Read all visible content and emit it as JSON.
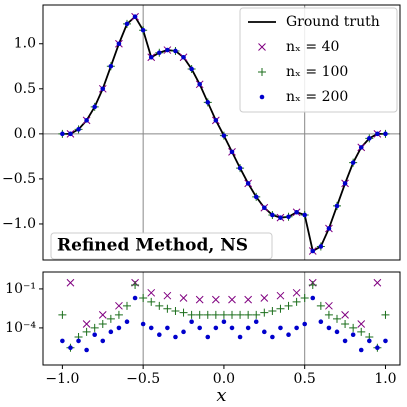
{
  "chart_data": [
    {
      "type": "line",
      "xlim": [
        -1.12,
        1.09
      ],
      "ylim": [
        -1.4,
        1.43
      ],
      "yticks": [
        {
          "value": -1.0,
          "label": "−1.0"
        },
        {
          "value": -0.5,
          "label": "−0.5"
        },
        {
          "value": 0,
          "label": "0.0"
        },
        0.5,
        {
          "value": 1.0,
          "label": "1.0"
        }
      ],
      "vlines": [
        -0.5,
        0.5
      ],
      "hlines": [
        0
      ],
      "legend": "upper right",
      "annotation": "Refined Method, NS",
      "series": [
        {
          "name": "Ground truth",
          "kind": "line",
          "color": "#000000",
          "x": [
            -1.0,
            -0.95,
            -0.9,
            -0.85,
            -0.8,
            -0.75,
            -0.7,
            -0.65,
            -0.6,
            -0.55,
            -0.5,
            -0.45,
            -0.4,
            -0.35,
            -0.3,
            -0.25,
            -0.2,
            -0.15,
            -0.1,
            -0.05,
            0,
            0.05,
            0.1,
            0.15,
            0.2,
            0.25,
            0.3,
            0.35,
            0.4,
            0.45,
            0.5,
            0.55,
            0.6,
            0.65,
            0.7,
            0.75,
            0.8,
            0.85,
            0.9,
            0.95,
            1.0
          ],
          "values": [
            0,
            0.0,
            0.05,
            0.15,
            0.3,
            0.5,
            0.75,
            1.0,
            1.22,
            1.3,
            1.15,
            0.85,
            0.9,
            0.93,
            0.92,
            0.85,
            0.72,
            0.55,
            0.35,
            0.15,
            -0.02,
            -0.2,
            -0.38,
            -0.55,
            -0.7,
            -0.82,
            -0.9,
            -0.93,
            -0.92,
            -0.87,
            -0.9,
            -1.3,
            -1.25,
            -1.05,
            -0.8,
            -0.55,
            -0.32,
            -0.15,
            -0.05,
            0.0,
            0.0
          ]
        },
        {
          "name": "nₓ = 40",
          "kind": "scatter",
          "marker": "x",
          "color": "#800080",
          "x": [
            -0.95,
            -0.85,
            -0.75,
            -0.65,
            -0.55,
            -0.45,
            -0.35,
            -0.25,
            -0.15,
            -0.05,
            0.05,
            0.15,
            0.25,
            0.35,
            0.45,
            0.55,
            0.65,
            0.75,
            0.85,
            0.95
          ],
          "values": [
            0.0,
            0.15,
            0.5,
            1.0,
            1.3,
            0.85,
            0.93,
            0.85,
            0.55,
            0.15,
            -0.2,
            -0.55,
            -0.82,
            -0.93,
            -0.87,
            -1.3,
            -1.05,
            -0.55,
            -0.15,
            0.0
          ]
        },
        {
          "name": "nₓ = 100",
          "kind": "scatter",
          "marker": "+",
          "color": "#1b6e1b",
          "x": [
            -1.0,
            -0.9,
            -0.8,
            -0.7,
            -0.6,
            -0.5,
            -0.4,
            -0.3,
            -0.2,
            -0.1,
            0,
            0.1,
            0.2,
            0.3,
            0.4,
            0.5,
            0.6,
            0.7,
            0.8,
            0.9,
            1.0
          ],
          "values": [
            0,
            0.05,
            0.3,
            0.75,
            1.22,
            1.15,
            0.9,
            0.92,
            0.72,
            0.35,
            -0.02,
            -0.38,
            -0.7,
            -0.9,
            -0.92,
            -0.9,
            -1.25,
            -0.8,
            -0.32,
            -0.05,
            0.0
          ]
        },
        {
          "name": "nₓ = 200",
          "kind": "scatter",
          "marker": "o",
          "color": "#0000cc",
          "x": [
            -1.0,
            -0.95,
            -0.9,
            -0.85,
            -0.8,
            -0.75,
            -0.7,
            -0.65,
            -0.6,
            -0.55,
            -0.5,
            -0.45,
            -0.4,
            -0.35,
            -0.3,
            -0.25,
            -0.2,
            -0.15,
            -0.1,
            -0.05,
            0,
            0.05,
            0.1,
            0.15,
            0.2,
            0.25,
            0.3,
            0.35,
            0.4,
            0.45,
            0.5,
            0.55,
            0.6,
            0.65,
            0.7,
            0.75,
            0.8,
            0.85,
            0.9,
            0.95,
            1.0
          ],
          "values": [
            0,
            0.0,
            0.05,
            0.15,
            0.3,
            0.5,
            0.75,
            1.0,
            1.22,
            1.3,
            1.15,
            0.85,
            0.9,
            0.93,
            0.92,
            0.85,
            0.72,
            0.55,
            0.35,
            0.15,
            -0.02,
            -0.2,
            -0.38,
            -0.55,
            -0.7,
            -0.82,
            -0.9,
            -0.93,
            -0.92,
            -0.87,
            -0.9,
            -1.3,
            -1.25,
            -1.05,
            -0.8,
            -0.55,
            -0.32,
            -0.15,
            -0.05,
            0.0,
            0.0
          ]
        }
      ]
    },
    {
      "type": "scatter",
      "log_y": true,
      "xlim": [
        -1.12,
        1.09
      ],
      "ylim": [
        1.4e-07,
        2
      ],
      "xticks": [
        {
          "value": -1.0,
          "label": "−1.0"
        },
        {
          "value": -0.5,
          "label": "−0.5"
        },
        {
          "value": 0,
          "label": "0.0"
        },
        0.5,
        {
          "value": 1.0,
          "label": "1.0"
        }
      ],
      "yticks": [
        {
          "value": 0.1,
          "label": "10⁻¹"
        },
        {
          "value": 0.0001,
          "label": "10⁻⁴"
        }
      ],
      "xlabel": "x",
      "vlines": [
        -0.5,
        0.5
      ],
      "series": [
        {
          "marker": "x",
          "color": "#800080",
          "x": [
            -0.95,
            -0.85,
            -0.75,
            -0.65,
            -0.55,
            -0.45,
            -0.35,
            -0.25,
            -0.15,
            -0.05,
            0.05,
            0.15,
            0.25,
            0.35,
            0.45,
            0.55,
            0.65,
            0.75,
            0.85,
            0.95
          ],
          "values": [
            0.3,
            0.0002,
            0.001,
            0.005,
            0.3,
            0.05,
            0.03,
            0.02,
            0.015,
            0.015,
            0.015,
            0.015,
            0.02,
            0.03,
            0.05,
            0.3,
            0.005,
            0.001,
            0.0002,
            0.3
          ]
        },
        {
          "marker": "+",
          "color": "#1b6e1b",
          "x": [
            -1.0,
            -0.95,
            -0.9,
            -0.85,
            -0.8,
            -0.75,
            -0.7,
            -0.65,
            -0.6,
            -0.55,
            -0.5,
            -0.45,
            -0.4,
            -0.35,
            -0.3,
            -0.25,
            -0.2,
            -0.15,
            -0.1,
            -0.05,
            0,
            0.05,
            0.1,
            0.15,
            0.2,
            0.25,
            0.3,
            0.35,
            0.4,
            0.45,
            0.5,
            0.55,
            0.6,
            0.65,
            0.7,
            0.75,
            0.8,
            0.85,
            0.9,
            0.95,
            1.0
          ],
          "values": [
            0.001,
            3e-06,
            2e-05,
            5e-05,
            0.0001,
            0.0002,
            0.0005,
            0.001,
            0.005,
            0.2,
            0.02,
            0.01,
            0.005,
            0.003,
            0.002,
            0.0015,
            0.001,
            0.001,
            0.001,
            0.001,
            0.001,
            0.001,
            0.001,
            0.001,
            0.001,
            0.0015,
            0.002,
            0.003,
            0.005,
            0.01,
            0.02,
            0.2,
            0.005,
            0.001,
            0.0005,
            0.0002,
            0.0001,
            5e-05,
            2e-05,
            3e-06,
            0.001
          ]
        },
        {
          "marker": "o",
          "color": "#0000cc",
          "x": [
            -1.0,
            -0.95,
            -0.9,
            -0.85,
            -0.8,
            -0.75,
            -0.7,
            -0.65,
            -0.6,
            -0.55,
            -0.5,
            -0.45,
            -0.4,
            -0.35,
            -0.3,
            -0.25,
            -0.2,
            -0.15,
            -0.1,
            -0.05,
            0,
            0.05,
            0.1,
            0.15,
            0.2,
            0.25,
            0.3,
            0.35,
            0.4,
            0.45,
            0.5,
            0.55,
            0.6,
            0.65,
            0.7,
            0.75,
            0.8,
            0.85,
            0.9,
            0.95,
            1.0
          ],
          "values": [
            1e-05,
            3e-06,
            1e-05,
            2e-06,
            3e-05,
            1e-05,
            5e-05,
            0.0001,
            0.0003,
            0.02,
            0.0002,
            0.0001,
            3e-05,
            0.0001,
            2e-05,
            5e-05,
            0.0003,
            0.0001,
            2e-05,
            0.0001,
            0.0003,
            0.0001,
            2e-05,
            0.0001,
            0.0003,
            5e-05,
            2e-05,
            0.0001,
            3e-05,
            0.0001,
            0.0002,
            0.02,
            0.0003,
            0.0001,
            5e-05,
            1e-05,
            3e-05,
            2e-06,
            1e-05,
            3e-06,
            1e-05
          ]
        }
      ]
    }
  ]
}
